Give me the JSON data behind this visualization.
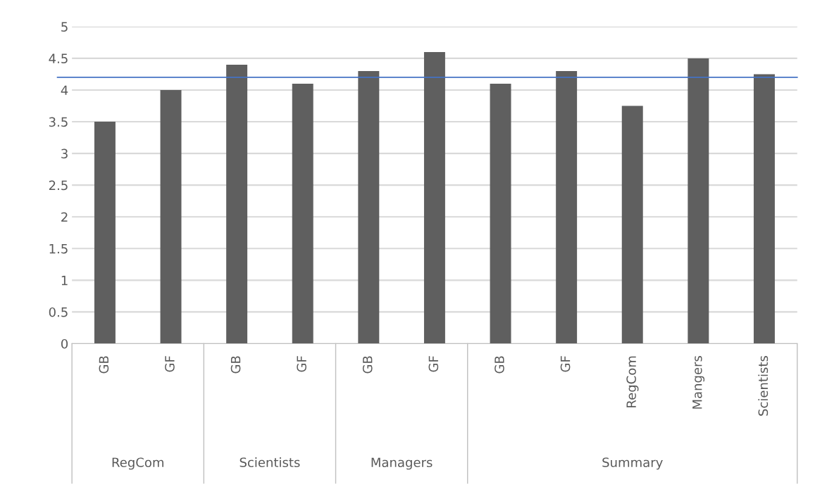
{
  "chart_data": {
    "type": "bar",
    "categories": [
      "GB",
      "GF",
      "GB",
      "GF",
      "GB",
      "GF",
      "GB",
      "GF",
      "RegCom",
      "Mangers",
      "Scientists"
    ],
    "values": [
      3.5,
      4.0,
      4.4,
      4.1,
      4.3,
      4.6,
      4.1,
      4.3,
      3.75,
      4.5,
      4.25
    ],
    "color": "#5f5f5f",
    "ylim": [
      0,
      5
    ],
    "yticks": [
      0,
      0.5,
      1,
      1.5,
      2,
      2.5,
      3,
      3.5,
      4,
      4.5,
      5
    ],
    "grid": "y",
    "ref_lines": [
      {
        "axis": "y",
        "value": 4.2,
        "color": "#4472c4"
      }
    ],
    "annotations": [
      "RegCom",
      "Scientists",
      "Managers",
      "Summary"
    ]
  }
}
